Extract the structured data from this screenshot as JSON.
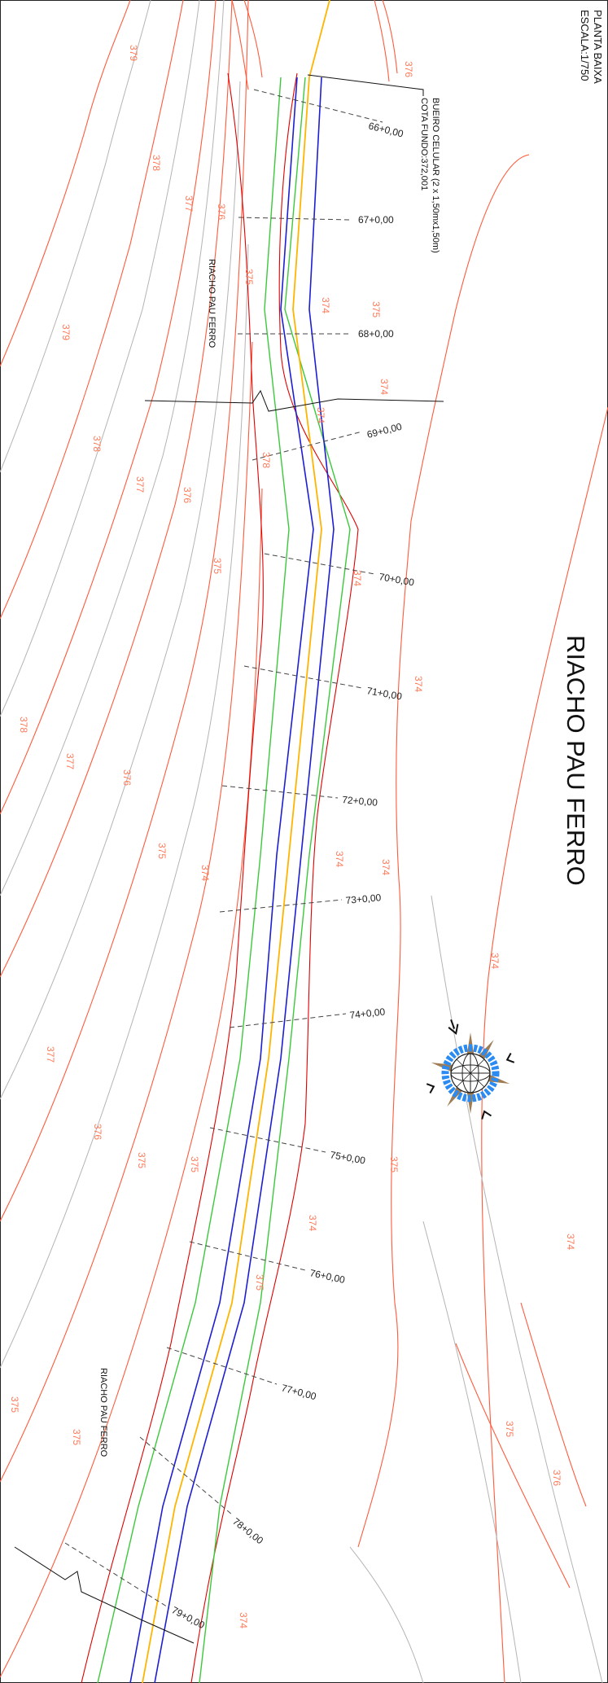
{
  "sheet": {
    "view_title": "PLANTA BAIXA",
    "scale": "ESCALA:1/750",
    "river_main_label": "RIACHO PAU FERRO",
    "river_label_upper": "RIACHO PAU FERRO",
    "river_label_lower": "RIACHO PAU FERRO"
  },
  "culvert_note": {
    "line1": "BUEIRO CELULAR (2 x 1,50mx1,50m)",
    "line2": "COTA FUNDO:372,001"
  },
  "stations": [
    "66+0,00",
    "67+0,00",
    "68+0,00",
    "69+0,00",
    "70+0,00",
    "71+0,00",
    "72+0,00",
    "73+0,00",
    "74+0,00",
    "75+0,00",
    "76+0,00",
    "77+0,00",
    "78+0,00",
    "79+0,00"
  ],
  "contour_labels": [
    "379",
    "378",
    "377",
    "376",
    "375",
    "374",
    "376",
    "375",
    "374",
    "379",
    "378",
    "377",
    "376",
    "375",
    "374",
    "378",
    "377",
    "376",
    "375",
    "374",
    "378",
    "377",
    "376",
    "375",
    "374",
    "374",
    "375",
    "374",
    "374",
    "375",
    "376",
    "374",
    "375",
    "375",
    "374",
    "374",
    "374",
    "375",
    "375"
  ],
  "colors": {
    "contour_major": "#ff5a3c",
    "contour_minor": "#b4b4b4",
    "channel_outer": "#3cc83c",
    "channel_inner": "#1e1ed2",
    "centerline": "#ffb400",
    "bank": "#e00000",
    "compass_ring": "#2a8bf2"
  },
  "icons": {
    "north_arrow": "compass-rose-icon"
  }
}
